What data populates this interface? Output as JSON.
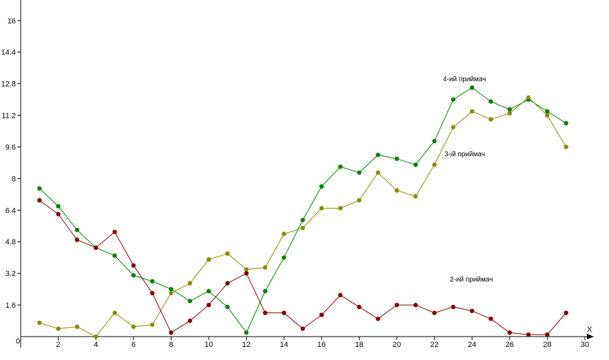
{
  "chart_data": {
    "type": "line",
    "title": "",
    "xlabel": "",
    "ylabel": "",
    "x_axis_letter": "X",
    "origin_label": "0",
    "xlim": [
      0,
      30
    ],
    "ylim": [
      0,
      16.5
    ],
    "x_ticks": [
      2,
      4,
      6,
      8,
      10,
      12,
      14,
      16,
      18,
      20,
      22,
      24,
      26,
      28,
      30
    ],
    "y_ticks": [
      1.6,
      3.2,
      4.8,
      6.4,
      8,
      9.6,
      11.2,
      12.8,
      14.4,
      16
    ],
    "grid": false,
    "legend": "none",
    "x": [
      1,
      2,
      3,
      4,
      5,
      6,
      7,
      8,
      9,
      10,
      11,
      12,
      13,
      14,
      15,
      16,
      17,
      18,
      19,
      20,
      21,
      22,
      23,
      24,
      25,
      26,
      27,
      28,
      29
    ],
    "series": [
      {
        "name": "4-ий приймач",
        "color": "#008000",
        "values": [
          7.5,
          6.6,
          5.4,
          4.5,
          4.1,
          3.1,
          2.8,
          2.4,
          1.8,
          2.3,
          1.5,
          0.2,
          2.3,
          4.0,
          5.9,
          7.6,
          8.6,
          8.3,
          9.2,
          9.0,
          8.7,
          9.9,
          12.0,
          12.6,
          11.9,
          11.5,
          12.0,
          11.4,
          10.8
        ]
      },
      {
        "name": "3-ій приймач",
        "color": "#8B8B00",
        "values": [
          0.7,
          0.4,
          0.5,
          0.0,
          1.2,
          0.5,
          0.6,
          2.2,
          2.7,
          3.9,
          4.2,
          3.4,
          3.5,
          5.2,
          5.5,
          6.5,
          6.5,
          6.9,
          8.3,
          7.4,
          7.1,
          8.7,
          10.6,
          11.4,
          11.0,
          11.3,
          12.1,
          11.2,
          9.6
        ]
      },
      {
        "name": "2-ий приймач",
        "color": "#800000",
        "values": [
          6.9,
          6.2,
          4.9,
          4.5,
          5.3,
          3.6,
          2.2,
          0.2,
          0.8,
          1.6,
          2.7,
          3.2,
          1.2,
          1.2,
          0.4,
          1.1,
          2.1,
          1.5,
          0.9,
          1.6,
          1.6,
          1.2,
          1.5,
          1.3,
          0.9,
          0.2,
          0.1,
          0.1,
          1.2
        ]
      }
    ]
  }
}
